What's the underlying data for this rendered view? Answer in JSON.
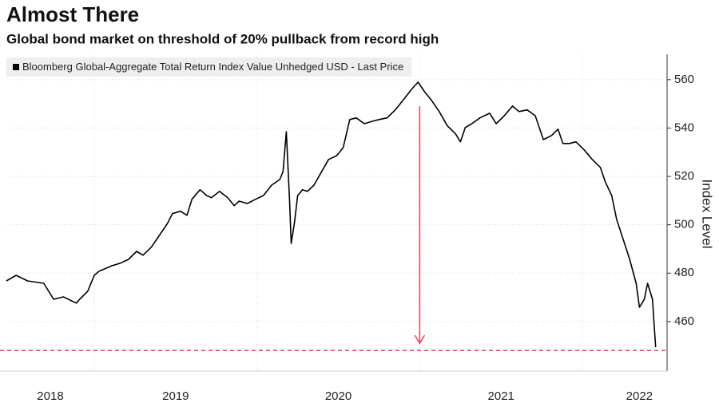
{
  "chart_data": {
    "type": "line",
    "title": "Almost There",
    "subtitle": "Global bond market on threshold of 20% pullback from record high",
    "y_label": "Index Level",
    "x": [
      2018.46,
      2018.52,
      2018.59,
      2018.69,
      2018.75,
      2018.81,
      2018.89,
      2018.91,
      2018.96,
      2019.0,
      2019.03,
      2019.11,
      2019.16,
      2019.21,
      2019.26,
      2019.3,
      2019.35,
      2019.4,
      2019.45,
      2019.48,
      2019.53,
      2019.57,
      2019.6,
      2019.65,
      2019.69,
      2019.72,
      2019.77,
      2019.82,
      2019.86,
      2019.89,
      2019.94,
      2019.99,
      2020.04,
      2020.09,
      2020.14,
      2020.16,
      2020.18,
      2020.2,
      2020.21,
      2020.23,
      2020.25,
      2020.28,
      2020.31,
      2020.35,
      2020.39,
      2020.44,
      2020.49,
      2020.53,
      2020.57,
      2020.61,
      2020.66,
      2020.71,
      2020.75,
      2020.8,
      2020.85,
      2020.9,
      2020.95,
      2020.99,
      2021.03,
      2021.07,
      2021.12,
      2021.17,
      2021.22,
      2021.25,
      2021.28,
      2021.32,
      2021.37,
      2021.43,
      2021.47,
      2021.52,
      2021.57,
      2021.61,
      2021.66,
      2021.71,
      2021.76,
      2021.81,
      2021.85,
      2021.88,
      2021.92,
      2021.96,
      2022.01,
      2022.06,
      2022.11,
      2022.14,
      2022.18,
      2022.21,
      2022.25,
      2022.29,
      2022.33,
      2022.35,
      2022.38,
      2022.4,
      2022.43,
      2022.45
    ],
    "series": [
      {
        "name": "Bloomberg Global-Aggregate Total Return Index Value Unhedged USD - Last Price",
        "color": "#000000",
        "values": [
          476.8,
          479.1,
          476.8,
          475.8,
          469.2,
          470.2,
          467.6,
          469.2,
          472.5,
          479.1,
          480.8,
          483.1,
          484.1,
          485.7,
          489.0,
          487.4,
          490.7,
          495.6,
          500.6,
          504.6,
          505.6,
          503.9,
          510.5,
          514.5,
          512.1,
          511.2,
          513.8,
          511.2,
          507.9,
          509.8,
          508.8,
          510.5,
          512.1,
          516.4,
          518.7,
          522.0,
          538.5,
          510.5,
          492.3,
          500.6,
          512.1,
          514.5,
          513.8,
          516.4,
          521.1,
          527.0,
          528.6,
          531.9,
          543.5,
          544.2,
          541.8,
          542.8,
          543.5,
          544.2,
          547.5,
          551.7,
          556.0,
          559.0,
          555.0,
          551.7,
          546.8,
          540.9,
          537.6,
          534.3,
          540.2,
          541.8,
          544.2,
          546.1,
          541.8,
          545.1,
          549.1,
          546.8,
          547.5,
          545.1,
          535.2,
          536.9,
          539.5,
          533.6,
          533.6,
          534.3,
          531.0,
          527.0,
          523.7,
          517.8,
          512.1,
          502.2,
          494.0,
          485.7,
          475.8,
          465.9,
          469.2,
          475.8,
          469.2,
          449.4
        ]
      }
    ],
    "xlim": [
      2018.46,
      2022.52
    ],
    "xticks": [
      {
        "value": 2018.73,
        "label": "2018"
      },
      {
        "value": 2019.5,
        "label": "2019"
      },
      {
        "value": 2020.5,
        "label": "2020"
      },
      {
        "value": 2021.5,
        "label": "2021"
      },
      {
        "value": 2022.35,
        "label": "2022"
      }
    ],
    "xgrid": [
      2019,
      2020,
      2021,
      2022
    ],
    "ylim": [
      439.5,
      570.5
    ],
    "yticks": [
      460,
      480,
      500,
      520,
      540,
      560
    ],
    "grid": true,
    "threshold": {
      "value": 448,
      "color": "#e8405b"
    },
    "annotations": [
      {
        "x": 2021.0,
        "from": 549,
        "to": 451,
        "color": "#e8405b"
      }
    ]
  }
}
